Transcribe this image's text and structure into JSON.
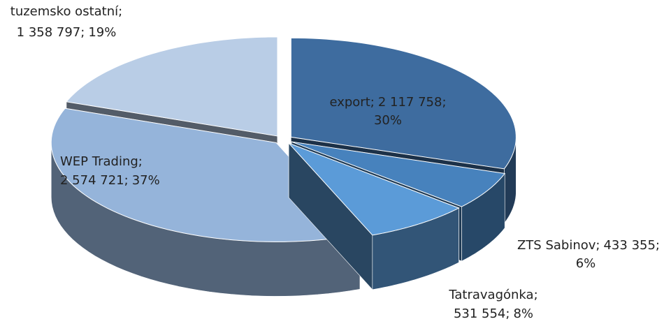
{
  "chart_data": {
    "type": "pie3d",
    "categories": [
      "export",
      "ZTS Sabinov",
      "Tatravagónka",
      "WEP Trading",
      "tuzemsko ostatní"
    ],
    "values": [
      2117758,
      433355,
      531554,
      2574721,
      1358797
    ],
    "value_labels": [
      "2 117 758",
      "433 355",
      "531 554",
      "2 574 721",
      "1 358 797"
    ],
    "percents": [
      30,
      6,
      8,
      37,
      19
    ],
    "percent_labels": [
      "30%",
      "6%",
      "8%",
      "37%",
      "19%"
    ],
    "separator": ";",
    "colors": [
      "#3e6c9f",
      "#4782bd",
      "#5b9bd8",
      "#95b4da",
      "#b9cde6"
    ]
  }
}
